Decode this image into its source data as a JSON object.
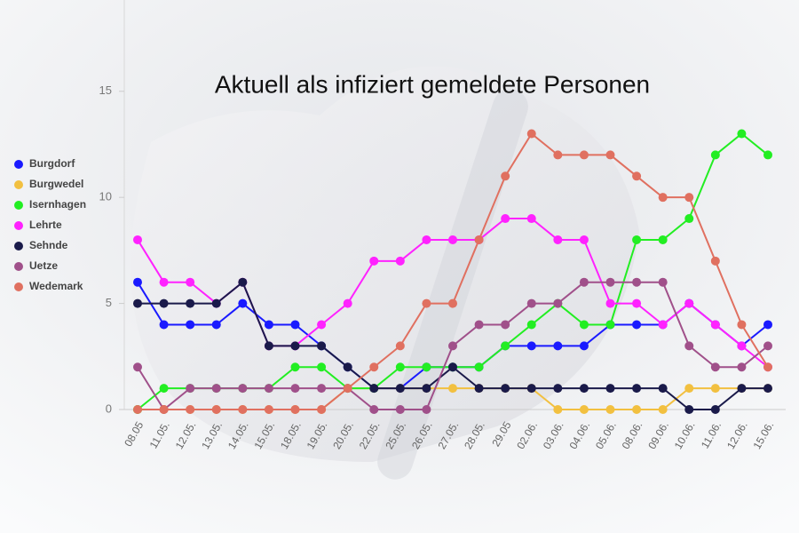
{
  "chart_data": {
    "type": "line",
    "title": "Aktuell als infiziert gemeldete Personen",
    "categories": [
      "08.05",
      "11.05.",
      "12.05.",
      "13.05.",
      "14.05.",
      "15.05.",
      "18.05.",
      "19.05.",
      "20.05.",
      "22.05.",
      "25.05.",
      "26.05.",
      "27.05.",
      "28.05.",
      "29.05",
      "02.06.",
      "03.06.",
      "04.06.",
      "05.06.",
      "08.06.",
      "09.06.",
      "10.06.",
      "11.06.",
      "12.06.",
      "15.06."
    ],
    "series": [
      {
        "name": "Burgdorf",
        "color": "#1a1aff",
        "values": [
          6,
          4,
          4,
          4,
          5,
          4,
          4,
          3,
          2,
          1,
          1,
          2,
          2,
          2,
          3,
          3,
          3,
          3,
          4,
          4,
          4,
          5,
          4,
          3,
          4
        ]
      },
      {
        "name": "Burgwedel",
        "color": "#f2c040",
        "values": [
          0,
          0,
          0,
          0,
          0,
          0,
          0,
          0,
          1,
          1,
          1,
          1,
          1,
          1,
          1,
          1,
          0,
          0,
          0,
          0,
          0,
          1,
          1,
          1,
          1
        ]
      },
      {
        "name": "Isernhagen",
        "color": "#22ee22",
        "values": [
          0,
          1,
          1,
          1,
          1,
          1,
          2,
          2,
          1,
          1,
          2,
          2,
          2,
          2,
          3,
          4,
          5,
          4,
          4,
          8,
          8,
          9,
          12,
          13,
          12
        ]
      },
      {
        "name": "Lehrte",
        "color": "#ff22ff",
        "values": [
          8,
          6,
          6,
          5,
          6,
          3,
          3,
          4,
          5,
          7,
          7,
          8,
          8,
          8,
          9,
          9,
          8,
          8,
          5,
          5,
          4,
          5,
          4,
          3,
          2
        ]
      },
      {
        "name": "Sehnde",
        "color": "#1a1a4a",
        "values": [
          5,
          5,
          5,
          5,
          6,
          3,
          3,
          3,
          2,
          1,
          1,
          1,
          2,
          1,
          1,
          1,
          1,
          1,
          1,
          1,
          1,
          0,
          0,
          1,
          1
        ]
      },
      {
        "name": "Uetze",
        "color": "#a0508a",
        "values": [
          2,
          0,
          1,
          1,
          1,
          1,
          1,
          1,
          1,
          0,
          0,
          0,
          3,
          4,
          4,
          5,
          5,
          6,
          6,
          6,
          6,
          3,
          2,
          2,
          3
        ]
      },
      {
        "name": "Wedemark",
        "color": "#e07060",
        "values": [
          0,
          0,
          0,
          0,
          0,
          0,
          0,
          0,
          1,
          2,
          3,
          5,
          5,
          8,
          11,
          13,
          12,
          12,
          12,
          11,
          10,
          10,
          7,
          4,
          2
        ]
      }
    ],
    "ylim": [
      0,
      17
    ],
    "yticks": [
      0,
      5,
      10,
      15
    ]
  }
}
